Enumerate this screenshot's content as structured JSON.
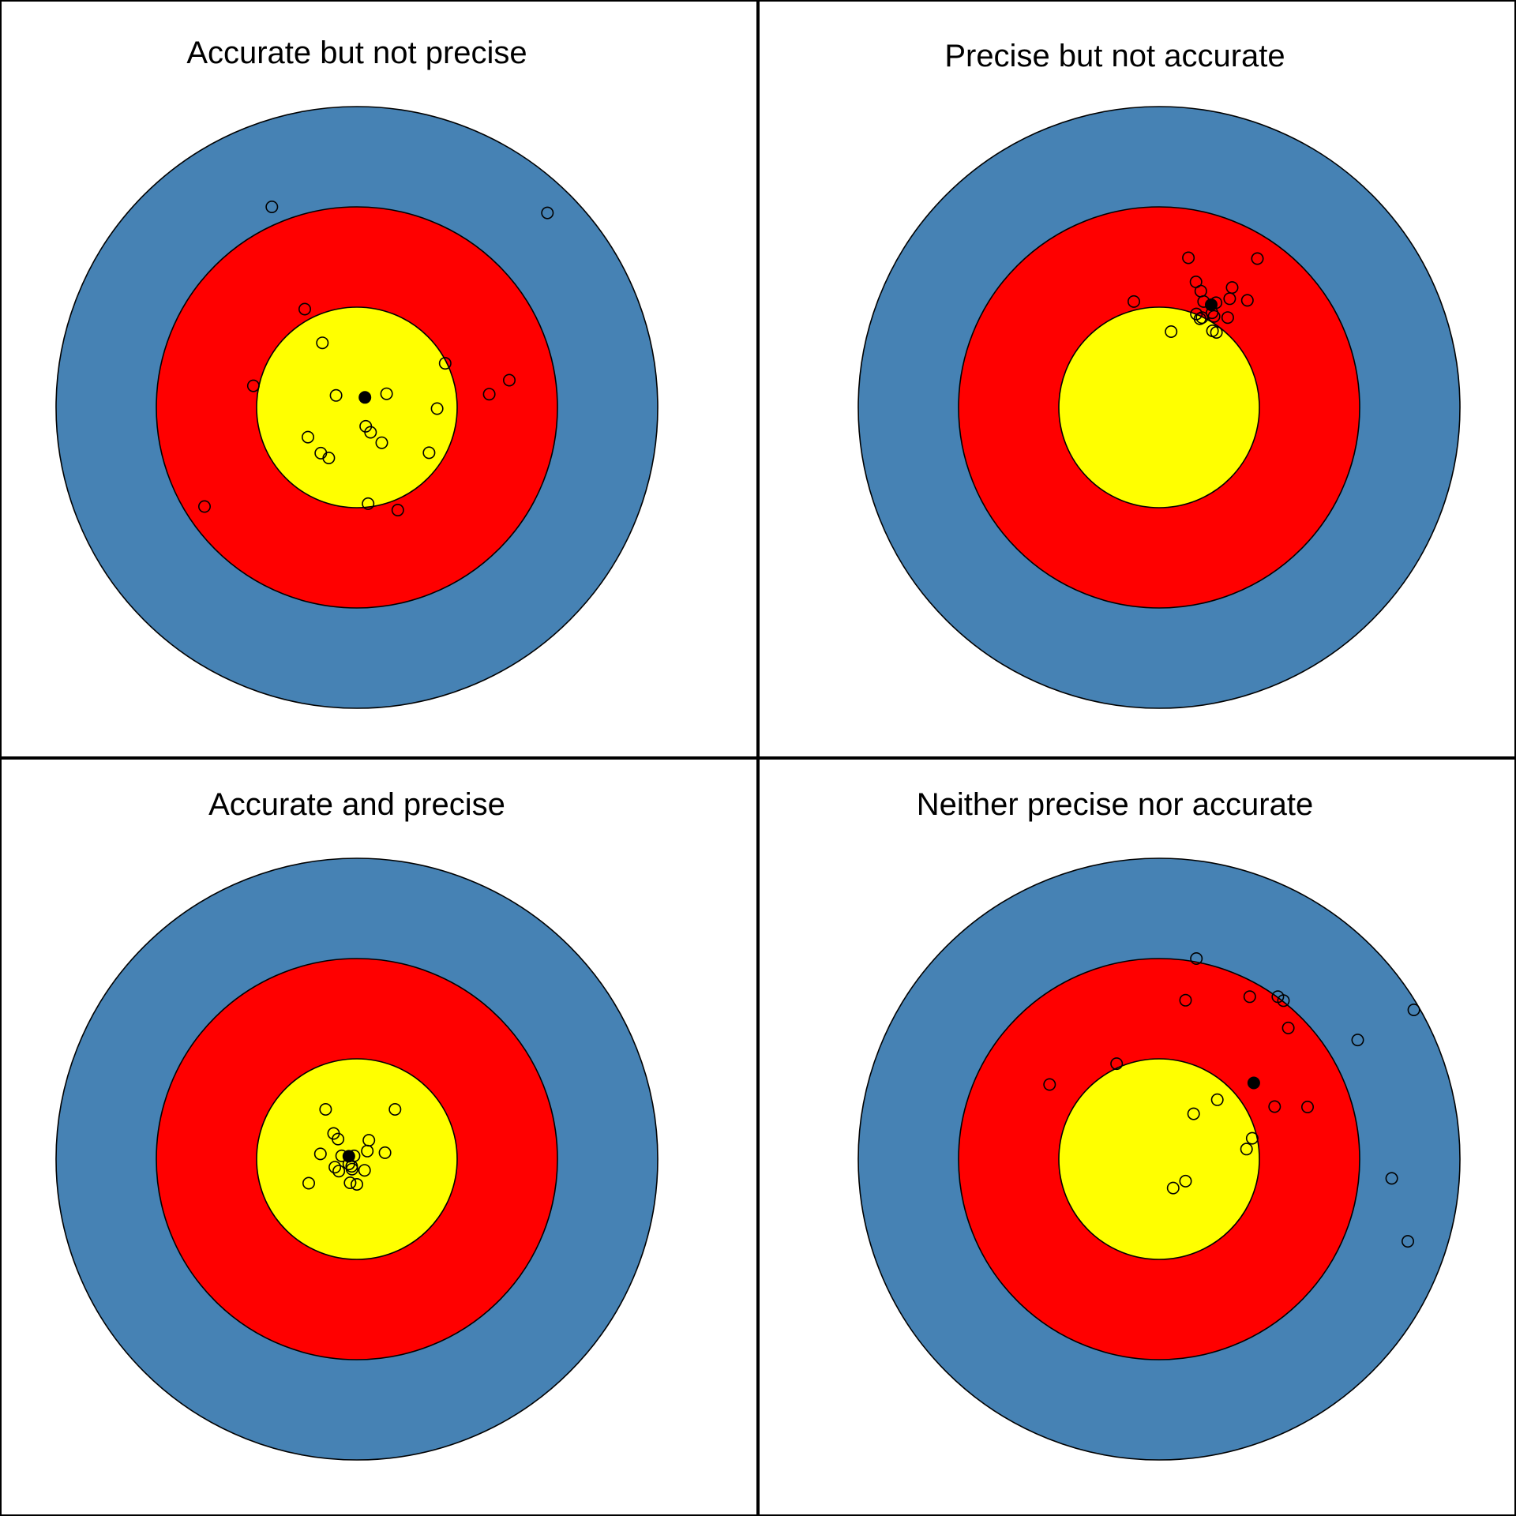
{
  "colors": {
    "outer_ring": "#4682B4",
    "middle_ring": "#FF0000",
    "inner_ring": "#FFFF00",
    "outline": "#000000",
    "background": "#FFFFFF"
  },
  "panels": [
    {
      "title": "Accurate but not precise",
      "mean": [
        0.2,
        0.25
      ],
      "shots": [
        [
          -2.12,
          5.0
        ],
        [
          4.75,
          4.85
        ],
        [
          -1.3,
          2.45
        ],
        [
          -0.86,
          1.61
        ],
        [
          2.2,
          1.1
        ],
        [
          3.8,
          0.68
        ],
        [
          -2.58,
          0.54
        ],
        [
          -0.52,
          0.3
        ],
        [
          0.74,
          0.34
        ],
        [
          2.0,
          -0.03
        ],
        [
          3.3,
          0.33
        ],
        [
          -1.22,
          -0.74
        ],
        [
          0.22,
          -0.47
        ],
        [
          0.34,
          -0.62
        ],
        [
          0.62,
          -0.88
        ],
        [
          -0.9,
          -1.14
        ],
        [
          -0.7,
          -1.26
        ],
        [
          1.8,
          -1.13
        ],
        [
          -3.8,
          -2.47
        ],
        [
          0.28,
          -2.4
        ],
        [
          1.02,
          -2.56
        ]
      ]
    },
    {
      "title": "Precise but not accurate",
      "mean": [
        1.3,
        2.56
      ],
      "shots": [
        [
          0.73,
          3.73
        ],
        [
          2.45,
          3.71
        ],
        [
          0.92,
          3.13
        ],
        [
          1.04,
          2.9
        ],
        [
          1.82,
          2.99
        ],
        [
          -0.63,
          2.64
        ],
        [
          1.11,
          2.64
        ],
        [
          1.42,
          2.61
        ],
        [
          1.76,
          2.71
        ],
        [
          2.2,
          2.67
        ],
        [
          0.93,
          2.33
        ],
        [
          1.32,
          2.36
        ],
        [
          1.37,
          2.27
        ],
        [
          1.02,
          2.21
        ],
        [
          1.07,
          2.24
        ],
        [
          1.71,
          2.24
        ],
        [
          1.33,
          1.91
        ],
        [
          1.43,
          1.87
        ],
        [
          0.3,
          1.89
        ]
      ]
    },
    {
      "title": "Accurate and precise",
      "mean": [
        -0.2,
        0.07
      ],
      "shots": [
        [
          -0.78,
          1.24
        ],
        [
          0.95,
          1.24
        ],
        [
          -0.58,
          0.64
        ],
        [
          -0.47,
          0.5
        ],
        [
          0.3,
          0.47
        ],
        [
          0.26,
          0.2
        ],
        [
          -0.91,
          0.13
        ],
        [
          -0.38,
          0.08
        ],
        [
          -0.07,
          0.08
        ],
        [
          0.7,
          0.16
        ],
        [
          -0.2,
          -0.12
        ],
        [
          -0.13,
          -0.18
        ],
        [
          -0.55,
          -0.2
        ],
        [
          -0.45,
          -0.3
        ],
        [
          -0.12,
          -0.25
        ],
        [
          0.19,
          -0.28
        ],
        [
          -1.2,
          -0.6
        ],
        [
          -0.17,
          -0.59
        ],
        [
          0.0,
          -0.63
        ]
      ]
    },
    {
      "title": "Neither precise nor accurate",
      "mean": [
        2.36,
        1.9
      ],
      "shots": [
        [
          0.93,
          5.0
        ],
        [
          2.26,
          4.05
        ],
        [
          2.96,
          4.05
        ],
        [
          3.1,
          3.95
        ],
        [
          0.66,
          3.96
        ],
        [
          3.22,
          3.27
        ],
        [
          6.35,
          3.72
        ],
        [
          4.95,
          2.97
        ],
        [
          -1.06,
          2.38
        ],
        [
          -2.73,
          1.86
        ],
        [
          1.45,
          1.48
        ],
        [
          2.88,
          1.31
        ],
        [
          3.7,
          1.3
        ],
        [
          0.86,
          1.13
        ],
        [
          2.32,
          0.52
        ],
        [
          2.18,
          0.25
        ],
        [
          5.8,
          -0.48
        ],
        [
          0.66,
          -0.55
        ],
        [
          0.35,
          -0.72
        ],
        [
          6.2,
          -2.05
        ]
      ]
    }
  ]
}
